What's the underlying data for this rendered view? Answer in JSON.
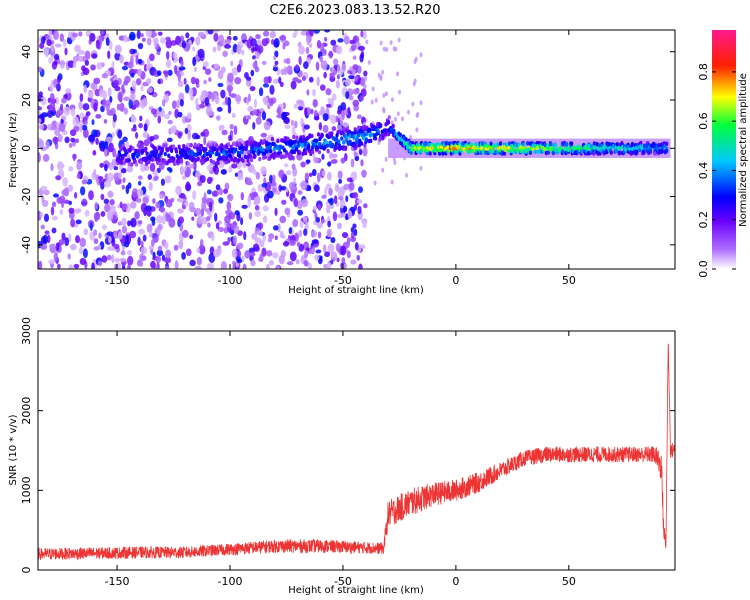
{
  "chart_data": [
    {
      "type": "heatmap",
      "title": "C2E6.2023.083.13.52.R20",
      "xlabel": "Height of straight line (km)",
      "ylabel": "Frequency (Hz)",
      "xlim": [
        -185,
        97
      ],
      "ylim": [
        -50,
        49
      ],
      "x_ticks": [
        -150,
        -100,
        -50,
        0,
        50
      ],
      "y_ticks": [
        -40,
        -20,
        0,
        20,
        40
      ],
      "grid": false,
      "colorbar": {
        "label": "Normalized spectral amplitude",
        "range": [
          0,
          0.97
        ],
        "ticks": [
          0.0,
          0.2,
          0.4,
          0.6,
          0.8
        ],
        "colormap": [
          "#ffffff",
          "#8a2be2",
          "#0000ff",
          "#00ffff",
          "#00ff00",
          "#ffff00",
          "#ff0000",
          "#ff00aa"
        ]
      },
      "description_points": [
        {
          "x": -150,
          "y": -3,
          "v": 0.3
        },
        {
          "x": -100,
          "y": -2,
          "v": 0.35
        },
        {
          "x": -60,
          "y": 2,
          "v": 0.4
        },
        {
          "x": -40,
          "y": 5,
          "v": 0.45
        },
        {
          "x": -30,
          "y": 9,
          "v": 0.3
        },
        {
          "x": -20,
          "y": 0,
          "v": 0.7
        },
        {
          "x": 0,
          "y": 0,
          "v": 0.8
        },
        {
          "x": 20,
          "y": 0,
          "v": 0.75
        },
        {
          "x": 50,
          "y": 0,
          "v": 0.6
        },
        {
          "x": 90,
          "y": 0,
          "v": 0.45
        }
      ]
    },
    {
      "type": "line",
      "title": "",
      "xlabel": "Height of straight line (km)",
      "ylabel": "SNR (10 * v/v)",
      "xlim": [
        -185,
        97
      ],
      "ylim": [
        0,
        3000
      ],
      "x_ticks": [
        -150,
        -100,
        -50,
        0,
        50
      ],
      "y_ticks": [
        0,
        1000,
        2000,
        3000
      ],
      "grid": false,
      "series": [
        {
          "color": "#ee3333",
          "x": [
            -185,
            -160,
            -140,
            -120,
            -100,
            -80,
            -60,
            -40,
            -32,
            -30,
            -20,
            -10,
            0,
            10,
            20,
            30,
            40,
            50,
            60,
            70,
            80,
            88,
            91,
            92,
            93,
            94,
            95,
            97
          ],
          "y": [
            200,
            210,
            220,
            220,
            260,
            300,
            300,
            280,
            270,
            700,
            850,
            950,
            1000,
            1100,
            1250,
            1400,
            1450,
            1450,
            1450,
            1450,
            1450,
            1450,
            1300,
            500,
            300,
            2900,
            1500,
            1500
          ],
          "noise": [
            150,
            150,
            150,
            150,
            150,
            170,
            170,
            150,
            150,
            350,
            350,
            300,
            280,
            260,
            220,
            200,
            200,
            200,
            200,
            200,
            200,
            220,
            400,
            300,
            200,
            200,
            200,
            200
          ]
        }
      ]
    }
  ]
}
